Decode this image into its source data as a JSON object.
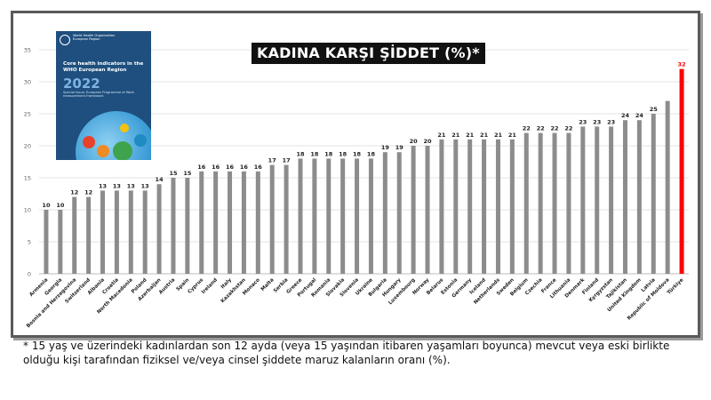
{
  "title": "KADINA KARŞI ŞİDDET (%)*",
  "footnote": "* 15 yaş ve üzerindeki kadınlardan son 12 ayda (veya 15 yaşından itibaren yaşamları boyunca) mevcut veya eski birlikte olduğu kişi tarafından fiziksel ve/veya cinsel şiddete maruz kalanların oranı (%).",
  "report_cover": {
    "org_name": "World Health Organization European Region",
    "title": "Core health indicators in the WHO European Region",
    "year": "2022",
    "subtitle": "Special focus: European Programme of Work measurement framework"
  },
  "colors": {
    "bar": "#8c8c8c",
    "highlight": "#ff0000",
    "grid": "#e3e3e3",
    "title_bg": "#111111"
  },
  "chart_data": {
    "type": "bar",
    "title": "KADINA KARŞI ŞİDDET (%)*",
    "xlabel": "",
    "ylabel": "",
    "ylim": [
      0,
      35
    ],
    "yticks": [
      0,
      5,
      10,
      15,
      20,
      25,
      30,
      35
    ],
    "grid": true,
    "legend": "none",
    "highlight_category": "Türkiye",
    "categories": [
      "Armenia",
      "Georgia",
      "Bosnia and Herzegovina",
      "Switzerland",
      "Albania",
      "Croatia",
      "North Macedonia",
      "Poland",
      "Azerbaijan",
      "Austria",
      "Spain",
      "Cyprus",
      "Ireland",
      "Italy",
      "Kazakhstan",
      "Monaco",
      "Malta",
      "Serbia",
      "Greece",
      "Portugal",
      "Romania",
      "Slovakia",
      "Slovenia",
      "Ukraine",
      "Bulgaria",
      "Hungary",
      "Luxembourg",
      "Norway",
      "Belarus",
      "Estonia",
      "Germany",
      "Iceland",
      "Netherlands",
      "Sweden",
      "Belgium",
      "Czechia",
      "France",
      "Lithuania",
      "Denmark",
      "Finland",
      "Kyrgyzstan",
      "Tajikistan",
      "United Kingdom",
      "Latvia",
      "Republic of Moldova",
      "Türkiye"
    ],
    "values": [
      10,
      10,
      12,
      12,
      13,
      13,
      13,
      13,
      14,
      15,
      15,
      16,
      16,
      16,
      16,
      16,
      17,
      17,
      18,
      18,
      18,
      18,
      18,
      18,
      19,
      19,
      20,
      20,
      21,
      21,
      21,
      21,
      21,
      21,
      22,
      22,
      22,
      22,
      23,
      23,
      23,
      24,
      24,
      25,
      27,
      32
    ],
    "data_labels_shown": [
      10,
      10,
      12,
      12,
      13,
      13,
      13,
      13,
      14,
      15,
      15,
      16,
      16,
      16,
      16,
      16,
      17,
      17,
      18,
      18,
      18,
      18,
      18,
      18,
      19,
      19,
      20,
      20,
      21,
      21,
      21,
      21,
      21,
      21,
      22,
      22,
      22,
      22,
      23,
      23,
      23,
      24,
      24,
      25,
      null,
      32
    ]
  }
}
